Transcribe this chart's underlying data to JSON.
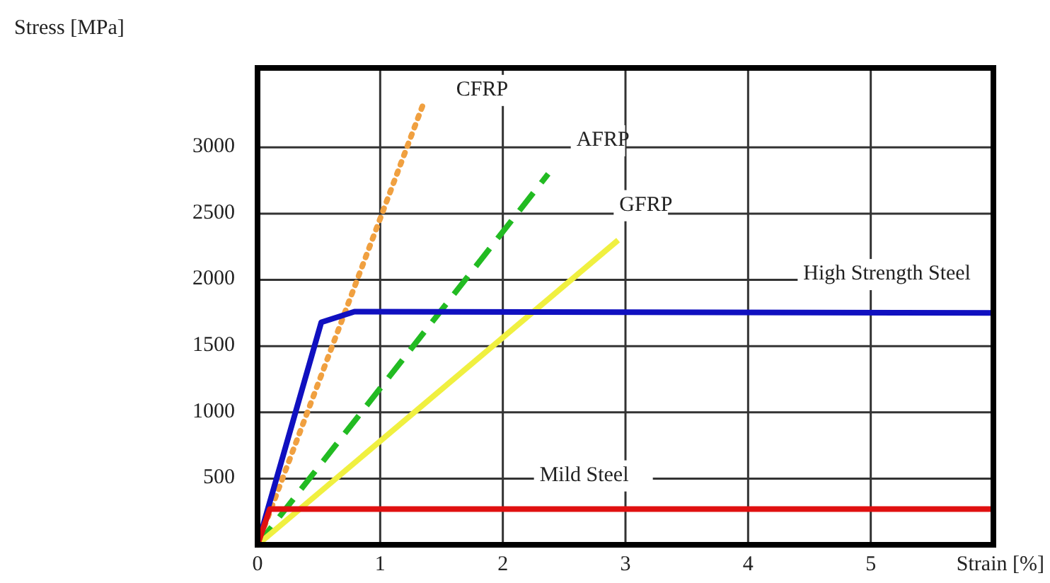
{
  "chart_data": {
    "type": "line",
    "xlabel": "Strain [%]",
    "ylabel": "Stress [MPa]",
    "xlim": [
      0,
      6
    ],
    "ylim": [
      0,
      3600
    ],
    "xticks": [
      0,
      1,
      2,
      3,
      4,
      5
    ],
    "yticks": [
      500,
      1000,
      1500,
      2000,
      2500,
      3000
    ],
    "grid": true,
    "marker": "none",
    "series": [
      {
        "name": "CFRP",
        "color": "#f0a040",
        "line_style": "dotted",
        "x": [
          0,
          1.36
        ],
        "values": [
          0,
          3350
        ]
      },
      {
        "name": "AFRP",
        "color": "#22bb22",
        "line_style": "dashed",
        "x": [
          0,
          2.37
        ],
        "values": [
          0,
          2800
        ]
      },
      {
        "name": "GFRP",
        "color": "#f0f040",
        "line_style": "solid",
        "x": [
          0,
          2.94
        ],
        "values": [
          0,
          2300
        ]
      },
      {
        "name": "High Strength Steel",
        "color": "#1010c0",
        "line_style": "solid",
        "x": [
          0,
          0.52,
          0.79,
          6
        ],
        "values": [
          0,
          1680,
          1760,
          1750
        ]
      },
      {
        "name": "Mild Steel",
        "color": "#e01010",
        "line_style": "solid",
        "x": [
          0,
          0.1,
          6
        ],
        "values": [
          0,
          270,
          270
        ]
      }
    ]
  }
}
